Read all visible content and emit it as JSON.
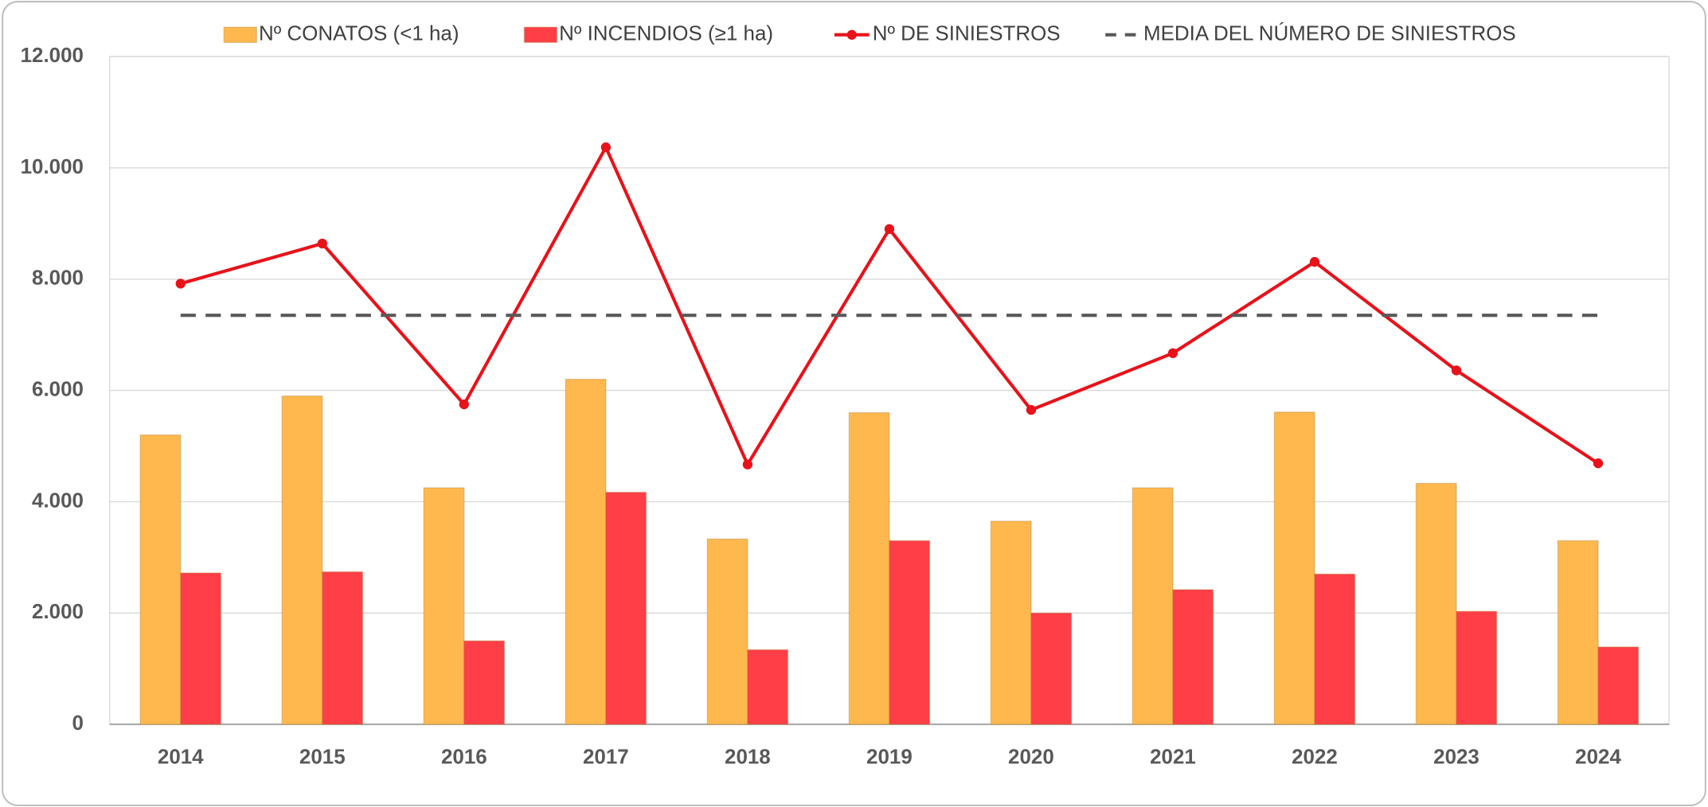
{
  "chart_data": {
    "type": "bar",
    "categories": [
      "2014",
      "2015",
      "2016",
      "2017",
      "2018",
      "2019",
      "2020",
      "2021",
      "2022",
      "2023",
      "2024"
    ],
    "series": [
      {
        "name": "Nº CONATOS (<1 ha)",
        "type": "bar",
        "color": "#ffb84d",
        "values": [
          5200,
          5900,
          4250,
          6200,
          3330,
          5600,
          3650,
          4250,
          5610,
          4330,
          3300
        ]
      },
      {
        "name": "Nº INCENDIOS (≥1 ha)",
        "type": "bar",
        "color": "#ff3e48",
        "values": [
          2720,
          2740,
          1500,
          4170,
          1340,
          3300,
          2000,
          2420,
          2700,
          2030,
          1390
        ]
      },
      {
        "name": "Nº DE SINIESTROS",
        "type": "line",
        "color": "#e8121a",
        "values": [
          7920,
          8640,
          5750,
          10370,
          4670,
          8900,
          5650,
          6670,
          8310,
          6360,
          4690
        ]
      },
      {
        "name": "MEDIA DEL NÚMERO DE SINIESTROS",
        "type": "line",
        "dashed": true,
        "color": "#595959",
        "values": [
          7350,
          7350,
          7350,
          7350,
          7350,
          7350,
          7350,
          7350,
          7350,
          7350,
          7350
        ]
      }
    ],
    "ylim": [
      0,
      12000
    ],
    "yticks": [
      0,
      {
        "value": 2000,
        "label": "2.000"
      },
      {
        "value": 4000,
        "label": "4.000"
      },
      {
        "value": 6000,
        "label": "6.000"
      },
      {
        "value": 8000,
        "label": "8.000"
      },
      {
        "value": 10000,
        "label": "10.000"
      },
      {
        "value": 12000,
        "label": "12.000"
      }
    ],
    "grid": true,
    "legend": "top"
  }
}
